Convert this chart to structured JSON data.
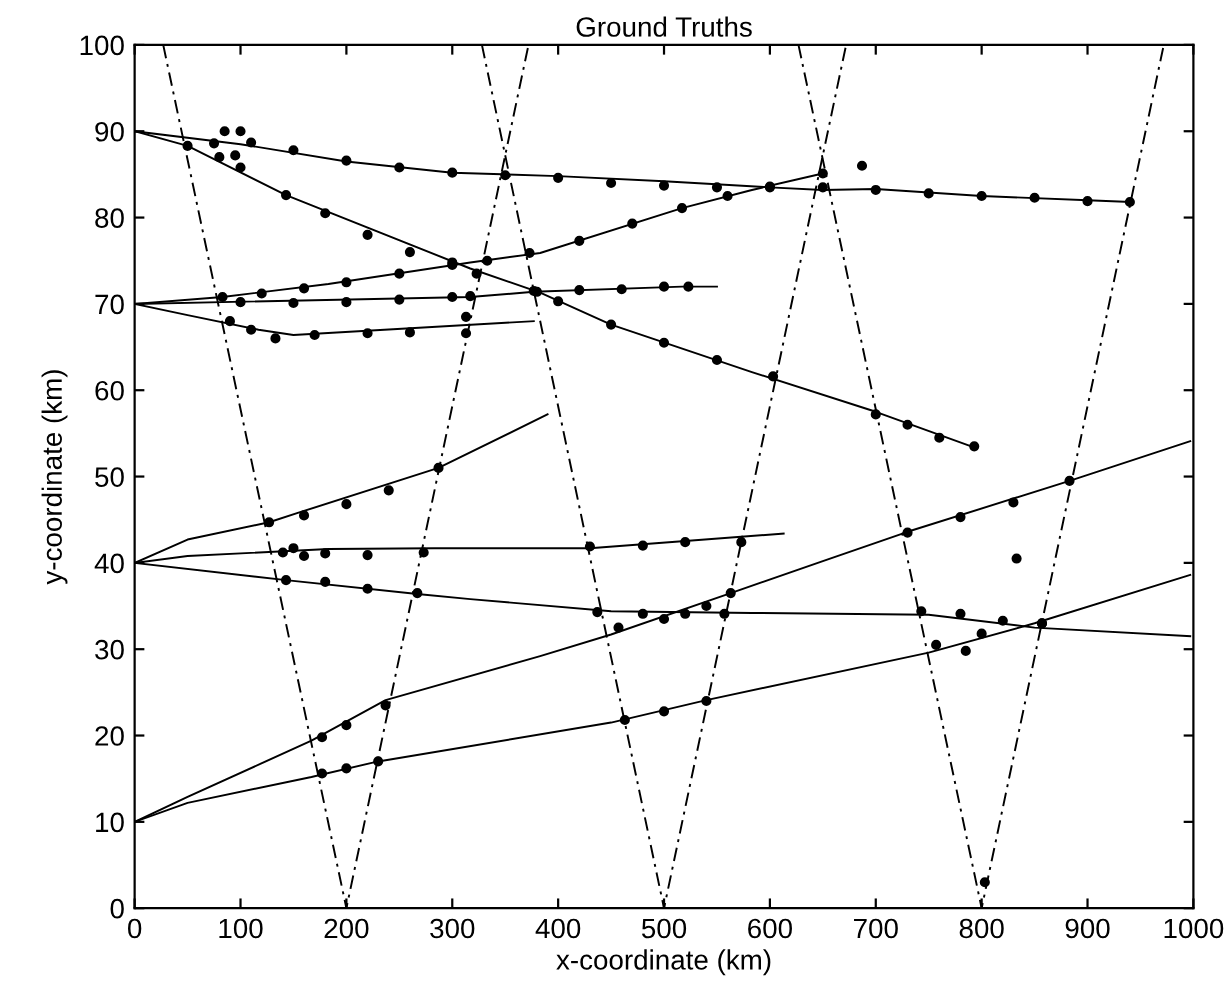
{
  "chart_data": {
    "type": "line",
    "title": "Ground Truths",
    "xlabel": "x-coordinate (km)",
    "ylabel": "y-coordinate (km)",
    "xlim": [
      0,
      1000
    ],
    "ylim": [
      0,
      100
    ],
    "xticks": [
      0,
      100,
      200,
      300,
      400,
      500,
      600,
      700,
      800,
      900,
      1000
    ],
    "yticks": [
      0,
      10,
      20,
      30,
      40,
      50,
      60,
      70,
      80,
      90,
      100
    ],
    "grid": false,
    "legend": false,
    "series": [
      {
        "color": "#000000",
        "line_style": "solid",
        "marker": "none",
        "x": [
          0,
          100,
          200,
          300,
          400,
          500,
          600,
          650,
          700,
          800,
          900,
          940
        ],
        "values": [
          90,
          88.5,
          86.5,
          85.2,
          84.8,
          84.2,
          83.5,
          83.2,
          83.3,
          82.5,
          82,
          81.8
        ]
      },
      {
        "color": "#000000",
        "line_style": "solid",
        "marker": "none",
        "x": [
          0,
          50,
          143,
          317,
          383,
          450,
          583,
          700,
          790
        ],
        "values": [
          90,
          88.3,
          82.6,
          74.1,
          71.3,
          67.6,
          62.1,
          57.5,
          53.5
        ]
      },
      {
        "type": "line",
        "color": "#000000",
        "line_style": "solid",
        "marker": "none",
        "x": [
          0,
          83,
          183,
          317,
          383,
          517,
          583,
          650
        ],
        "values": [
          70,
          70.8,
          72.3,
          74.8,
          75.9,
          81.1,
          83.2,
          85.1
        ]
      },
      {
        "type": "line",
        "color": "#000000",
        "line_style": "solid",
        "marker": "none",
        "x": [
          0,
          317,
          377,
          517,
          550
        ],
        "values": [
          70,
          70.8,
          71.4,
          72,
          72
        ]
      },
      {
        "type": "line",
        "color": "#000000",
        "line_style": "solid",
        "marker": "none",
        "x": [
          0,
          50,
          117,
          150,
          377
        ],
        "values": [
          70,
          68.7,
          67,
          66.4,
          68
        ]
      },
      {
        "type": "line",
        "color": "#000000",
        "line_style": "solid",
        "marker": "none",
        "x": [
          0,
          50,
          127,
          157,
          287,
          390
        ],
        "values": [
          40,
          42.7,
          44.7,
          45.9,
          51,
          57.2
        ]
      },
      {
        "type": "line",
        "color": "#000000",
        "line_style": "solid",
        "marker": "none",
        "x": [
          0,
          50,
          183,
          283,
          430,
          517,
          613
        ],
        "values": [
          40,
          40.8,
          41.6,
          41.7,
          41.7,
          42.5,
          43.4
        ]
      },
      {
        "type": "line",
        "color": "#000000",
        "line_style": "solid",
        "marker": "none",
        "x": [
          0,
          143,
          267,
          317,
          450,
          583,
          750,
          850,
          997
        ],
        "values": [
          40,
          38,
          36.4,
          35.8,
          34.4,
          34.2,
          34,
          32.5,
          31.5
        ]
      },
      {
        "type": "line",
        "color": "#000000",
        "line_style": "solid",
        "marker": "none",
        "x": [
          0,
          50,
          167,
          237,
          383,
          450,
          563,
          650,
          730,
          883,
          997
        ],
        "values": [
          10,
          12.9,
          19.4,
          24.1,
          29.2,
          31.7,
          36.5,
          40.2,
          43.6,
          49.5,
          54.1
        ]
      },
      {
        "type": "line",
        "color": "#000000",
        "line_style": "solid",
        "marker": "none",
        "x": [
          0,
          50,
          167,
          230,
          450,
          540,
          750,
          850,
          997
        ],
        "values": [
          10,
          12.2,
          15.2,
          17,
          21.5,
          24.1,
          29.6,
          33,
          38.6
        ]
      },
      {
        "type": "line",
        "color": "#000000",
        "line_style": "dashed",
        "marker": "none",
        "x": [
          27,
          200,
          372
        ],
        "values": [
          100,
          0,
          100
        ]
      },
      {
        "type": "line",
        "color": "#000000",
        "line_style": "dashed",
        "marker": "none",
        "x": [
          328,
          500,
          672
        ],
        "values": [
          100,
          0,
          100
        ]
      },
      {
        "type": "line",
        "color": "#000000",
        "line_style": "dashed",
        "marker": "none",
        "x": [
          627,
          800,
          972
        ],
        "values": [
          100,
          0,
          100
        ]
      },
      {
        "type": "scatter",
        "color": "#000000",
        "marker": "circle",
        "x": [
          75,
          85,
          100,
          110,
          150,
          200,
          250,
          300,
          350,
          400,
          450,
          500,
          550,
          600,
          650,
          700,
          750,
          800,
          850,
          900,
          940,
          95,
          50,
          80,
          100,
          143,
          180,
          220,
          260,
          300,
          323,
          377,
          400,
          450,
          500,
          550,
          603,
          700,
          730,
          760,
          793,
          83,
          120,
          160,
          200,
          250,
          300,
          333,
          373,
          420,
          470,
          517,
          560,
          600,
          650,
          687,
          100,
          150,
          200,
          250,
          300,
          317,
          313,
          380,
          420,
          460,
          500,
          523,
          90,
          110,
          133,
          170,
          220,
          260,
          313,
          127,
          160,
          200,
          240,
          287,
          140,
          150,
          160,
          180,
          220,
          273,
          430,
          480,
          520,
          573,
          143,
          180,
          220,
          267,
          437,
          480,
          520,
          557,
          743,
          780,
          820,
          857,
          177,
          200,
          237,
          457,
          500,
          540,
          563,
          730,
          780,
          830,
          883,
          177,
          200,
          230,
          463,
          500,
          540,
          757,
          800,
          857,
          803,
          785,
          833
        ],
        "values": [
          88.6,
          90,
          90,
          88.7,
          87.8,
          86.6,
          85.8,
          85.2,
          84.9,
          84.6,
          84,
          83.7,
          83.5,
          83.5,
          83.5,
          83.2,
          82.8,
          82.5,
          82.3,
          81.9,
          81.8,
          87.2,
          88.3,
          87,
          85.8,
          82.6,
          80.5,
          78,
          76,
          74.8,
          73.5,
          71.5,
          70.3,
          67.6,
          65.5,
          63.5,
          61.6,
          57.2,
          56,
          54.5,
          53.5,
          70.8,
          71.2,
          71.8,
          72.5,
          73.5,
          74.5,
          75,
          75.9,
          77.3,
          79.3,
          81.1,
          82.5,
          83.6,
          85.1,
          86,
          70.2,
          70.1,
          70.2,
          70.5,
          70.8,
          70.9,
          68.5,
          71.4,
          71.6,
          71.7,
          72,
          72,
          68,
          67,
          66,
          66.4,
          66.6,
          66.7,
          66.6,
          44.7,
          45.5,
          46.8,
          48.4,
          51,
          41.2,
          41.7,
          40.8,
          41.1,
          40.9,
          41.2,
          41.9,
          42,
          42.4,
          42.4,
          38,
          37.8,
          37,
          36.5,
          34.3,
          34.1,
          34.1,
          34.1,
          34.4,
          34.1,
          33.3,
          33,
          19.8,
          21.2,
          23.5,
          32.5,
          33.5,
          35,
          36.5,
          43.5,
          45.3,
          47,
          49.5,
          15.6,
          16.2,
          17,
          21.8,
          22.8,
          24,
          30.5,
          31.8,
          33,
          3,
          29.8,
          40.5
        ]
      }
    ]
  }
}
